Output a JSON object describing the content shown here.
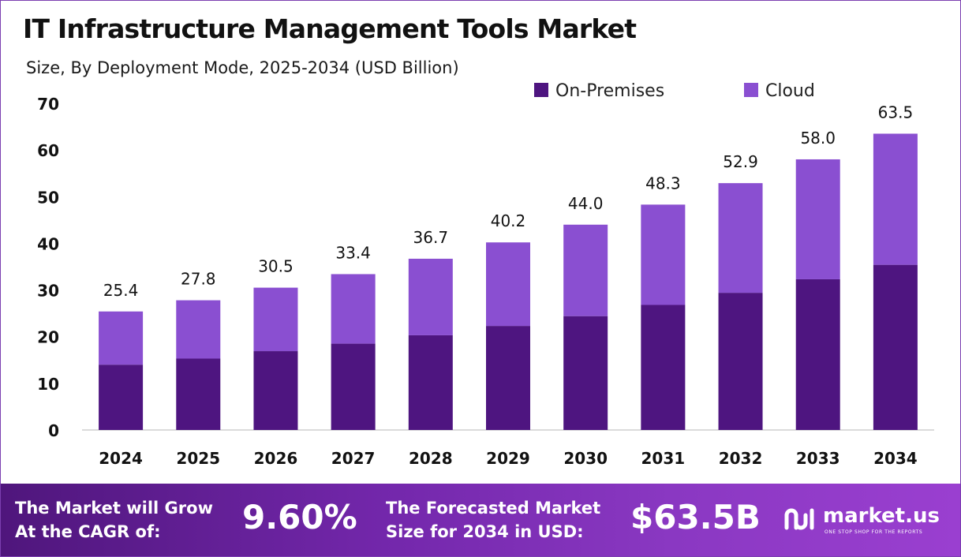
{
  "chart_data": {
    "type": "bar",
    "stacked": true,
    "title": "IT Infrastructure Management Tools Market",
    "subtitle": "Size, By Deployment Mode, 2025-2034 (USD Billion)",
    "categories": [
      "2024",
      "2025",
      "2026",
      "2027",
      "2028",
      "2029",
      "2030",
      "2031",
      "2032",
      "2033",
      "2034"
    ],
    "series": [
      {
        "name": "On-Premises",
        "color": "#4e1580",
        "values": [
          14.0,
          15.3,
          16.9,
          18.5,
          20.3,
          22.3,
          24.4,
          26.8,
          29.4,
          32.3,
          35.4
        ]
      },
      {
        "name": "Cloud",
        "color": "#8a4fd1",
        "values": [
          11.4,
          12.5,
          13.6,
          14.9,
          16.4,
          17.9,
          19.6,
          21.5,
          23.5,
          25.7,
          28.1
        ]
      }
    ],
    "totals": [
      "25.4",
      "27.8",
      "30.5",
      "33.4",
      "36.7",
      "40.2",
      "44.0",
      "48.3",
      "52.9",
      "58.0",
      "63.5"
    ],
    "yticks": [
      "0",
      "10",
      "20",
      "30",
      "40",
      "50",
      "60",
      "70"
    ],
    "ylim": [
      0,
      70
    ],
    "grid": false,
    "legend_position": "top-right"
  },
  "footer": {
    "cagr_label_line1": "The Market will Grow",
    "cagr_label_line2": "At the CAGR of:",
    "cagr_value": "9.60%",
    "forecast_label_line1": "The Forecasted Market",
    "forecast_label_line2": "Size for 2034 in USD:",
    "forecast_value": "$63.5B",
    "logo_name": "market.us",
    "logo_tagline": "ONE STOP SHOP FOR THE REPORTS"
  }
}
